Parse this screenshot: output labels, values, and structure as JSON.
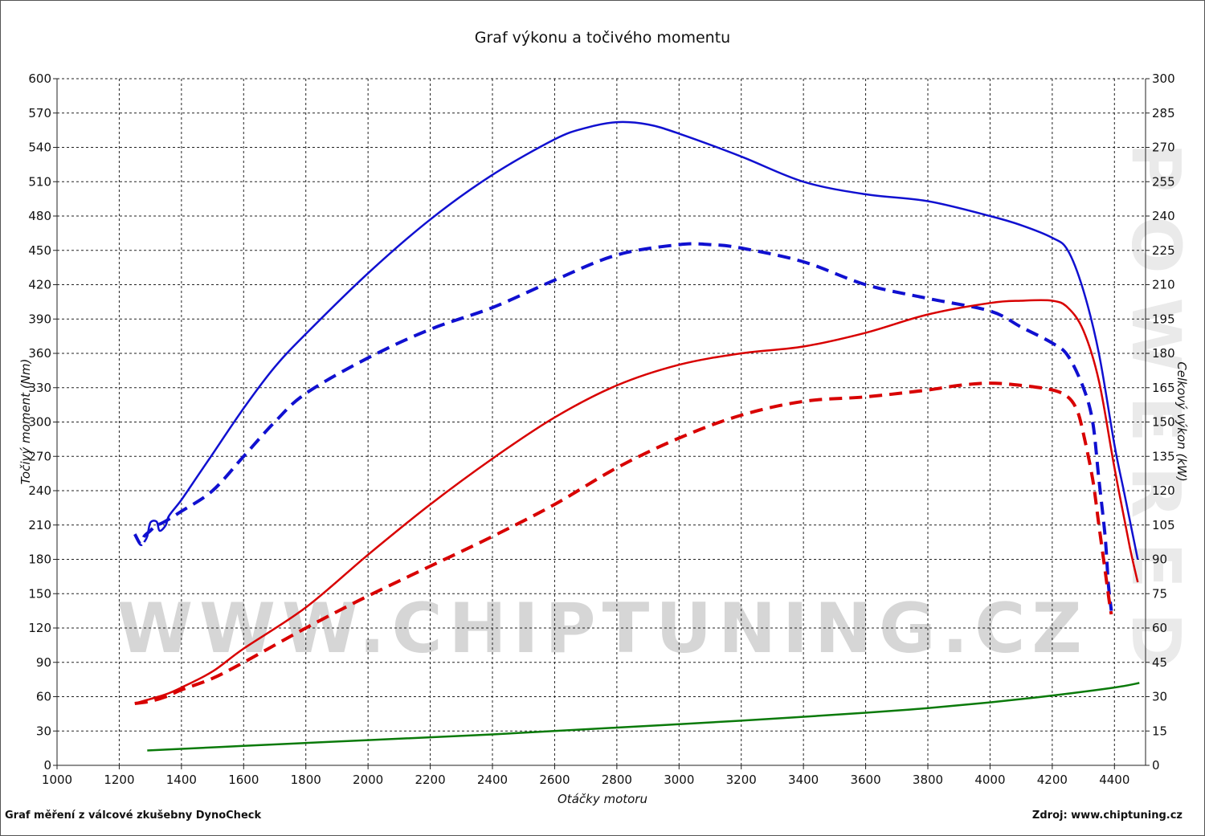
{
  "chart_data": {
    "type": "line",
    "title": "Graf výkonu a točivého momentu",
    "xlabel": "Otáčky motoru",
    "ylabel_left": "Točivý moment (Nm)",
    "ylabel_right": "Celkový výkon (kW)",
    "xlim": [
      1000,
      4500
    ],
    "ylim_left": [
      0,
      600
    ],
    "ylim_right": [
      0,
      300
    ],
    "x_ticks": [
      1000,
      1200,
      1400,
      1600,
      1800,
      2000,
      2200,
      2400,
      2600,
      2800,
      3000,
      3200,
      3400,
      3600,
      3800,
      4000,
      4200,
      4400
    ],
    "y_ticks_left": [
      0,
      30,
      60,
      90,
      120,
      150,
      180,
      210,
      240,
      270,
      300,
      330,
      360,
      390,
      420,
      450,
      480,
      510,
      540,
      570,
      600
    ],
    "y_ticks_right": [
      0,
      15,
      30,
      45,
      60,
      75,
      90,
      105,
      120,
      135,
      150,
      165,
      180,
      195,
      210,
      225,
      240,
      255,
      270,
      285,
      300
    ],
    "grid": true,
    "series": [
      {
        "color": "#1010d0",
        "style": "solid",
        "axis": "left",
        "points": [
          [
            1280,
            195
          ],
          [
            1290,
            200
          ],
          [
            1300,
            212
          ],
          [
            1320,
            213
          ],
          [
            1330,
            205
          ],
          [
            1350,
            210
          ],
          [
            1360,
            218
          ],
          [
            1400,
            232
          ],
          [
            1460,
            256
          ],
          [
            1500,
            272
          ],
          [
            1600,
            312
          ],
          [
            1700,
            348
          ],
          [
            1800,
            377
          ],
          [
            2000,
            430
          ],
          [
            2200,
            477
          ],
          [
            2400,
            516
          ],
          [
            2600,
            547
          ],
          [
            2700,
            557
          ],
          [
            2800,
            562
          ],
          [
            2900,
            560
          ],
          [
            3000,
            552
          ],
          [
            3200,
            532
          ],
          [
            3400,
            510
          ],
          [
            3600,
            499
          ],
          [
            3800,
            493
          ],
          [
            4000,
            480
          ],
          [
            4100,
            472
          ],
          [
            4200,
            461
          ],
          [
            4250,
            450
          ],
          [
            4300,
            415
          ],
          [
            4350,
            360
          ],
          [
            4400,
            280
          ],
          [
            4430,
            240
          ],
          [
            4460,
            200
          ],
          [
            4475,
            180
          ]
        ]
      },
      {
        "color": "#1010d0",
        "style": "dashed",
        "axis": "left",
        "points": [
          [
            1250,
            202
          ],
          [
            1270,
            193
          ],
          [
            1280,
            200
          ],
          [
            1300,
            205
          ],
          [
            1320,
            210
          ],
          [
            1340,
            212
          ],
          [
            1400,
            222
          ],
          [
            1500,
            240
          ],
          [
            1600,
            270
          ],
          [
            1700,
            300
          ],
          [
            1800,
            325
          ],
          [
            2000,
            356
          ],
          [
            2200,
            381
          ],
          [
            2400,
            400
          ],
          [
            2600,
            424
          ],
          [
            2800,
            446
          ],
          [
            3000,
            455
          ],
          [
            3100,
            455
          ],
          [
            3200,
            452
          ],
          [
            3400,
            440
          ],
          [
            3600,
            420
          ],
          [
            3800,
            408
          ],
          [
            4000,
            397
          ],
          [
            4100,
            383
          ],
          [
            4200,
            369
          ],
          [
            4250,
            358
          ],
          [
            4300,
            330
          ],
          [
            4330,
            300
          ],
          [
            4350,
            250
          ],
          [
            4370,
            200
          ],
          [
            4380,
            160
          ],
          [
            4390,
            135
          ]
        ]
      },
      {
        "color": "#d80000",
        "style": "solid",
        "axis": "right",
        "points": [
          [
            1250,
            27
          ],
          [
            1300,
            29
          ],
          [
            1350,
            31
          ],
          [
            1400,
            34
          ],
          [
            1500,
            41
          ],
          [
            1600,
            51
          ],
          [
            1800,
            69
          ],
          [
            2000,
            92
          ],
          [
            2200,
            114
          ],
          [
            2400,
            134
          ],
          [
            2600,
            152
          ],
          [
            2800,
            166
          ],
          [
            3000,
            175
          ],
          [
            3200,
            180
          ],
          [
            3400,
            183
          ],
          [
            3600,
            189
          ],
          [
            3800,
            197
          ],
          [
            4000,
            202
          ],
          [
            4100,
            203
          ],
          [
            4200,
            203
          ],
          [
            4250,
            200
          ],
          [
            4300,
            190
          ],
          [
            4350,
            168
          ],
          [
            4400,
            130
          ],
          [
            4450,
            95
          ],
          [
            4475,
            80
          ]
        ]
      },
      {
        "color": "#d80000",
        "style": "dashed",
        "axis": "right",
        "points": [
          [
            1250,
            27
          ],
          [
            1300,
            28
          ],
          [
            1350,
            30
          ],
          [
            1400,
            33
          ],
          [
            1500,
            38
          ],
          [
            1600,
            45
          ],
          [
            1800,
            60
          ],
          [
            2000,
            74
          ],
          [
            2200,
            87
          ],
          [
            2400,
            100
          ],
          [
            2600,
            114
          ],
          [
            2800,
            130
          ],
          [
            3000,
            143
          ],
          [
            3200,
            153
          ],
          [
            3400,
            159
          ],
          [
            3600,
            161
          ],
          [
            3800,
            164
          ],
          [
            3900,
            166
          ],
          [
            4000,
            167
          ],
          [
            4100,
            166
          ],
          [
            4200,
            164
          ],
          [
            4250,
            161
          ],
          [
            4280,
            155
          ],
          [
            4300,
            145
          ],
          [
            4330,
            125
          ],
          [
            4350,
            105
          ],
          [
            4370,
            85
          ],
          [
            4385,
            70
          ],
          [
            4390,
            66
          ]
        ]
      },
      {
        "color": "#0a7a0a",
        "style": "solid",
        "axis": "left",
        "points": [
          [
            1290,
            13
          ],
          [
            1600,
            17
          ],
          [
            2000,
            22
          ],
          [
            2400,
            27
          ],
          [
            2800,
            33
          ],
          [
            3200,
            39
          ],
          [
            3600,
            46
          ],
          [
            3800,
            50
          ],
          [
            4000,
            55
          ],
          [
            4200,
            61
          ],
          [
            4400,
            68
          ],
          [
            4480,
            72
          ]
        ]
      }
    ]
  },
  "footer": {
    "left": "Graf měření z válcové zkušebny DynoCheck",
    "right": "Zdroj: www.chiptuning.cz"
  },
  "watermark": {
    "url": "WWW.CHIPTUNING.CZ",
    "side": "POWERED"
  }
}
